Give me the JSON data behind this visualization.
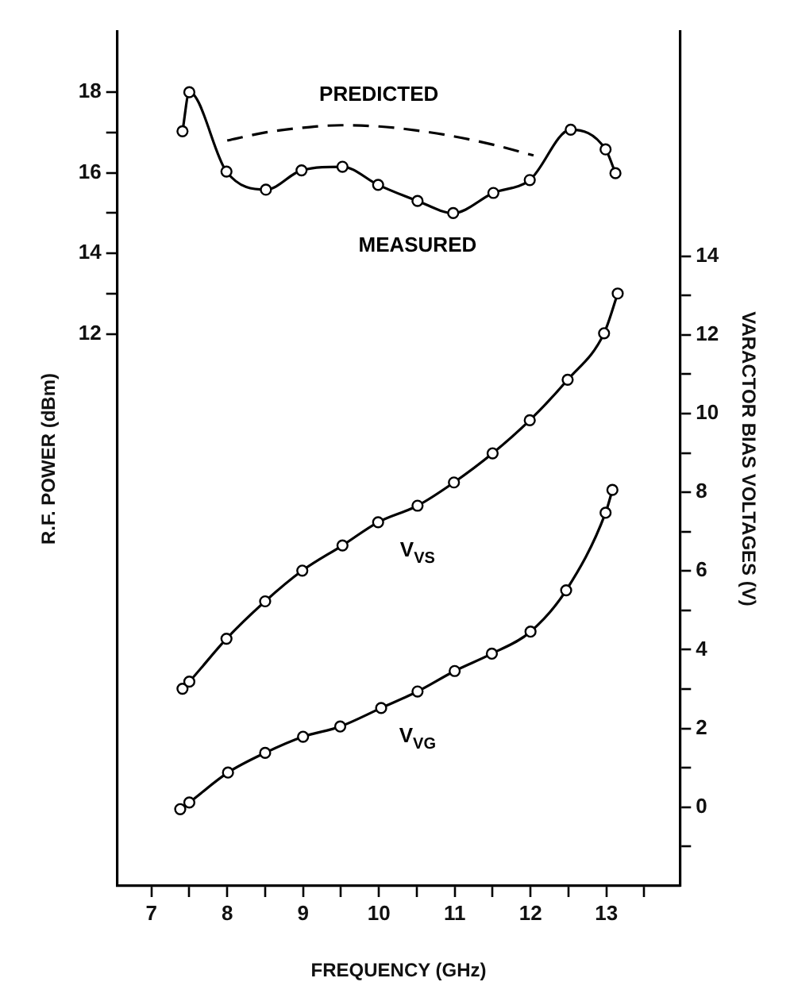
{
  "chart_data": {
    "type": "line",
    "xlabel": "FREQUENCY (GHz)",
    "ylabel": "R.F. POWER (dBm)",
    "y2label": "VARACTOR BIAS VOLTAGES (V)",
    "xlim": [
      6.55,
      13.97
    ],
    "xticks": [
      7,
      {
        "value": 7.5,
        "label": null
      },
      8,
      {
        "value": 8.5,
        "label": null
      },
      9,
      {
        "value": 9.5,
        "label": null
      },
      10,
      {
        "value": 10.5,
        "label": null
      },
      11,
      {
        "value": 11.5,
        "label": null
      },
      12,
      {
        "value": 12.5,
        "label": null
      },
      13,
      {
        "value": 13.5,
        "label": null
      }
    ],
    "ylim": [
      -1.7,
      19.5
    ],
    "yticks": [
      12,
      {
        "value": 13,
        "label": null
      },
      14,
      {
        "value": 15,
        "label": null
      },
      16,
      {
        "value": 17,
        "label": null
      },
      18
    ],
    "y2lim": [
      -2,
      19.7
    ],
    "y2ticks": [
      {
        "value": -1,
        "label": null
      },
      0,
      {
        "value": 1,
        "label": null
      },
      2,
      {
        "value": 3,
        "label": null
      },
      4,
      {
        "value": 5,
        "label": null
      },
      6,
      {
        "value": 7,
        "label": null
      },
      8,
      {
        "value": 9,
        "label": null
      },
      10,
      {
        "value": 11,
        "label": null
      },
      12,
      {
        "value": 13,
        "label": null
      },
      14
    ],
    "grid": false,
    "legend": false,
    "series": [
      {
        "name": "PREDICTED",
        "color": "#000000",
        "marker": "none",
        "line_style": "dashed",
        "x": [
          8.0,
          8.5,
          9.0,
          9.5,
          10.0,
          10.5,
          11.0,
          11.5,
          12.04
        ],
        "values": [
          16.8,
          17.0,
          17.12,
          17.18,
          17.15,
          17.05,
          16.9,
          16.7,
          16.43
        ]
      },
      {
        "name": "MEASURED",
        "color": "#000000",
        "marker": "circle",
        "line_style": "solid",
        "x": [
          7.41,
          7.5,
          7.99,
          8.51,
          8.98,
          9.52,
          9.99,
          10.51,
          10.98,
          11.51,
          11.99,
          12.53,
          12.99,
          13.12
        ],
        "values": [
          17.03,
          18.0,
          16.03,
          15.58,
          16.06,
          16.15,
          15.7,
          15.3,
          15.0,
          15.5,
          15.82,
          17.07,
          16.58,
          15.99
        ]
      },
      {
        "name": "V$_{VS}$",
        "color": "#000000",
        "marker": "circle",
        "line_style": "solid",
        "axis": "y2",
        "x": [
          7.41,
          7.5,
          7.99,
          8.5,
          8.99,
          9.52,
          9.99,
          10.51,
          10.99,
          11.5,
          11.99,
          12.49,
          12.97,
          13.15
        ],
        "values": [
          3.01,
          3.19,
          4.28,
          5.23,
          6.01,
          6.65,
          7.24,
          7.66,
          8.25,
          8.99,
          9.83,
          10.86,
          12.04,
          13.05
        ]
      },
      {
        "name": "V$_{VG}$",
        "color": "#000000",
        "marker": "circle",
        "line_style": "solid",
        "axis": "y2",
        "x": [
          7.38,
          7.5,
          8.01,
          8.5,
          9.0,
          9.49,
          10.03,
          10.51,
          11.0,
          11.49,
          12.0,
          12.47,
          12.99,
          13.08
        ],
        "values": [
          -0.05,
          0.12,
          0.88,
          1.38,
          1.79,
          2.05,
          2.52,
          2.94,
          3.46,
          3.9,
          4.46,
          5.51,
          7.48,
          8.06
        ]
      }
    ]
  }
}
